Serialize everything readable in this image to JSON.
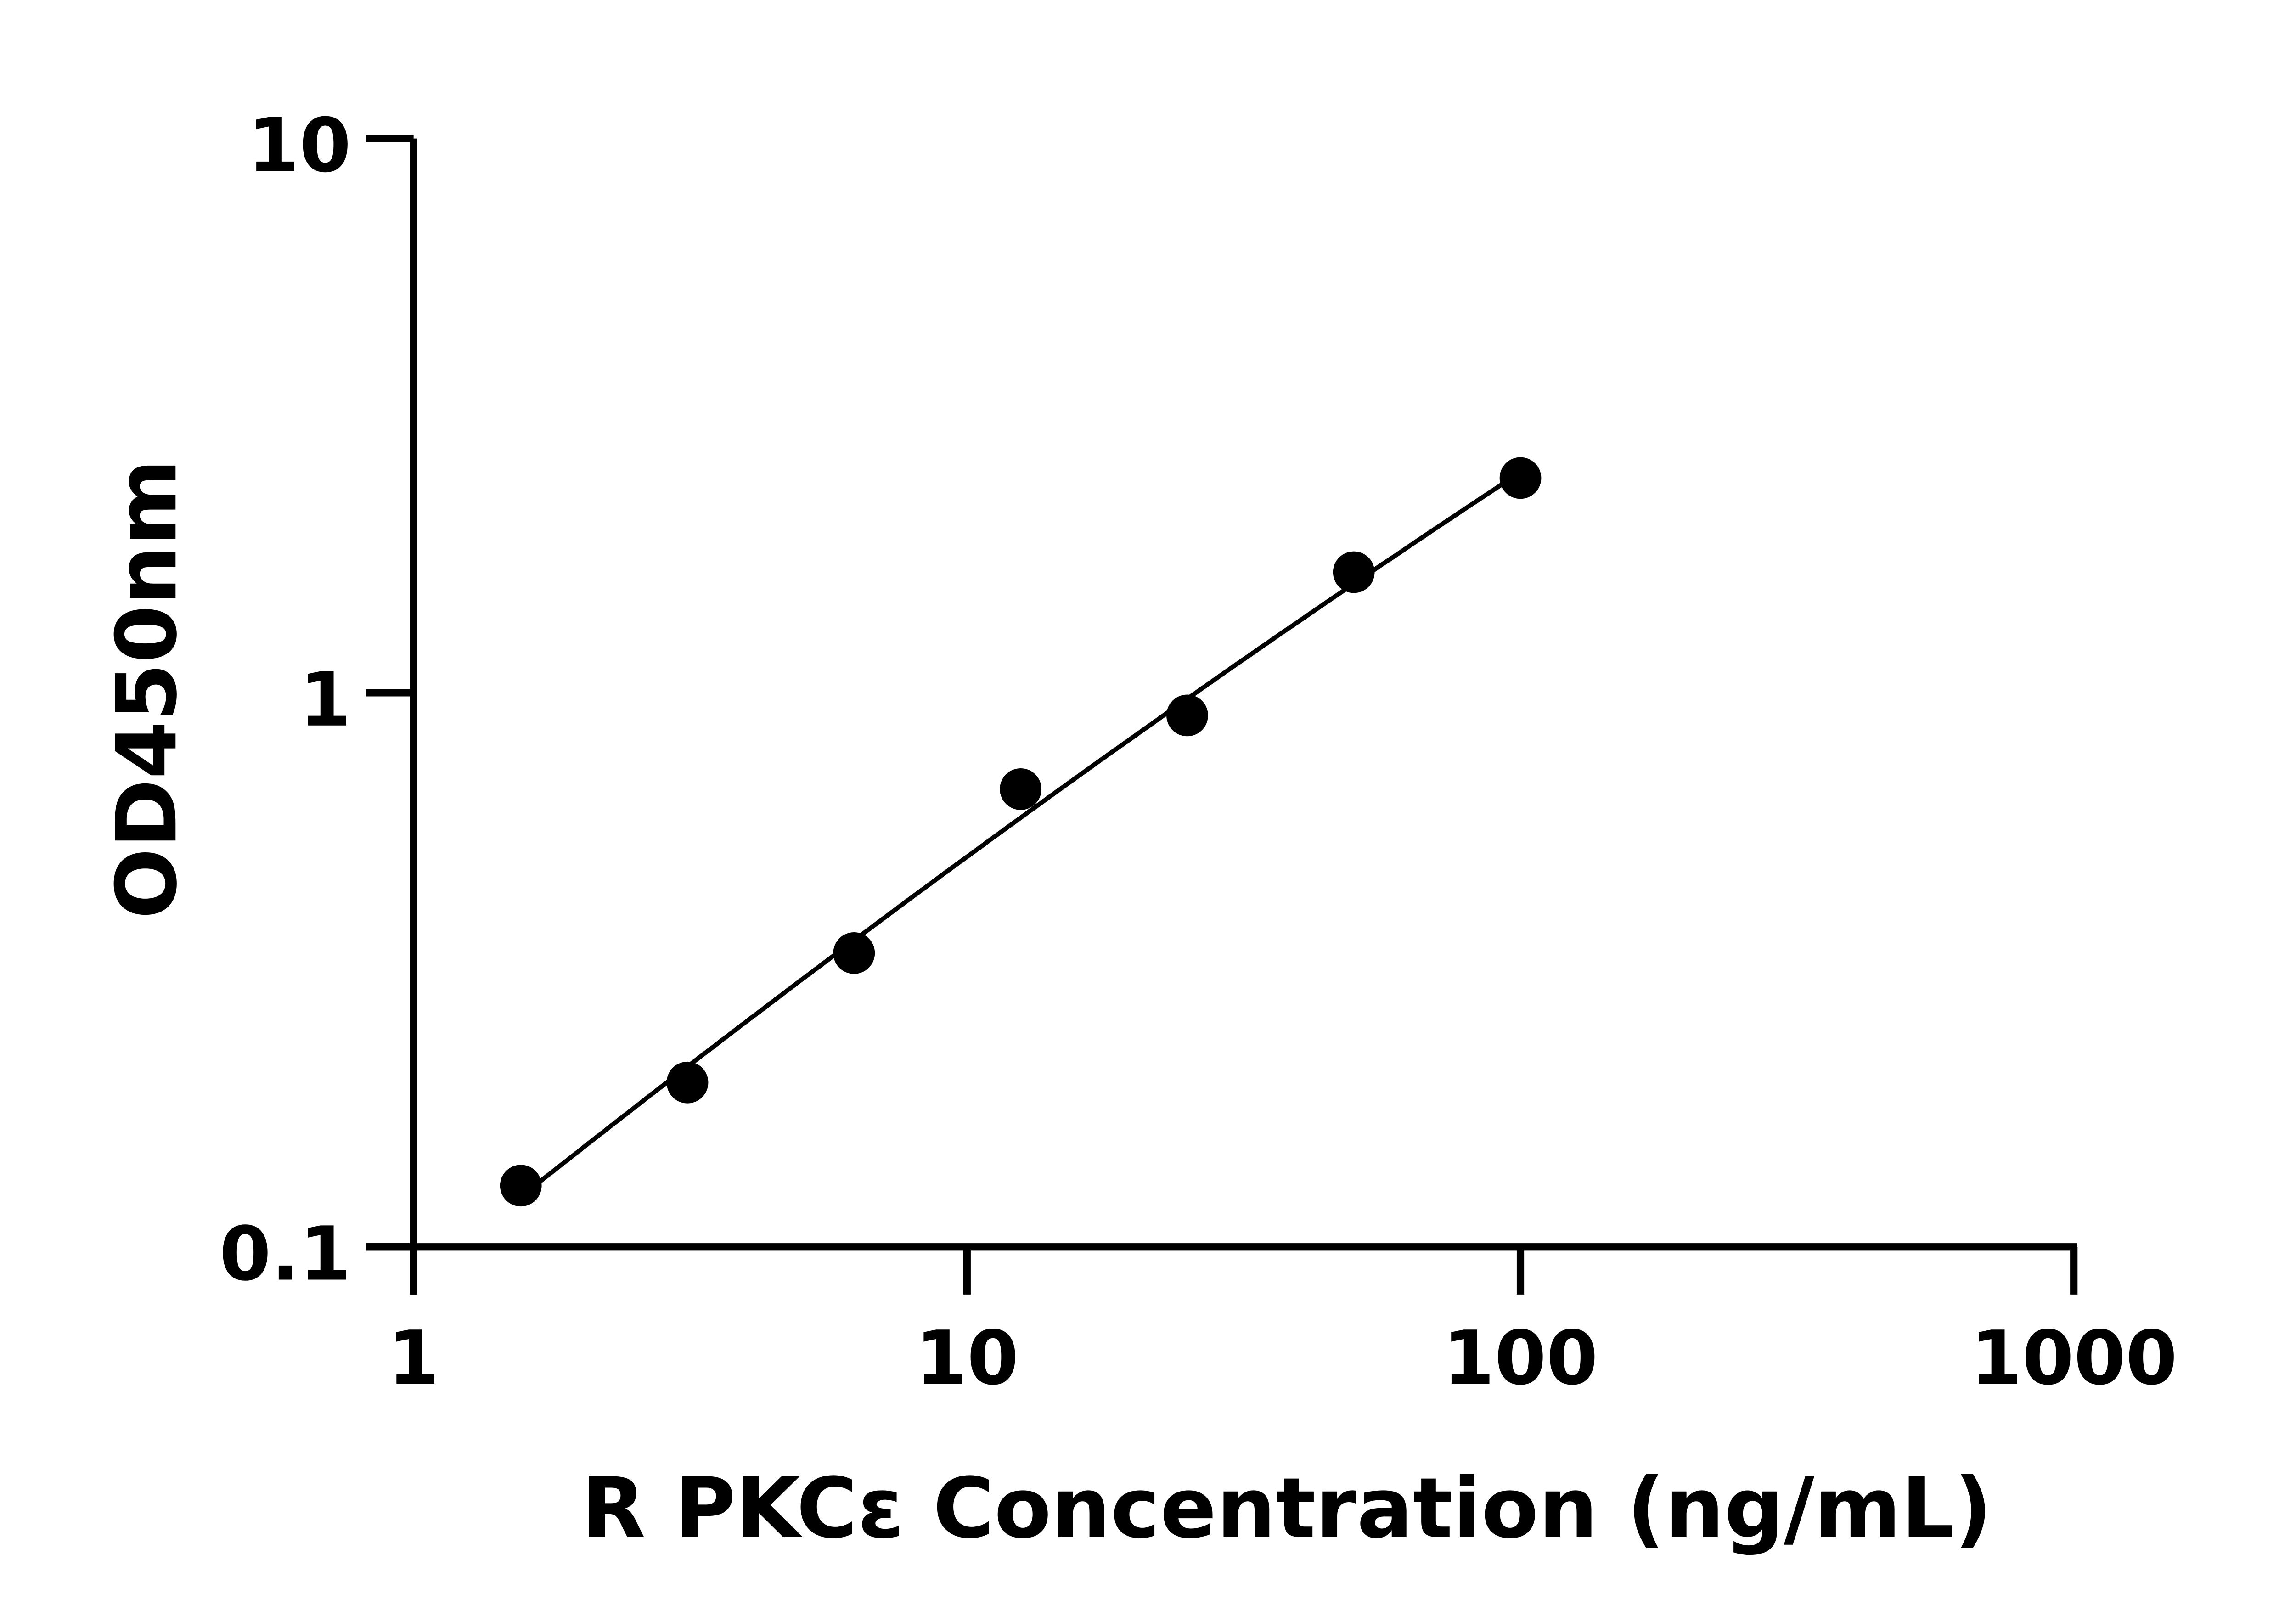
{
  "chart_data": {
    "type": "scatter",
    "title": "",
    "xlabel": "R PKCε Concentration (ng/mL)",
    "ylabel": "OD450nm",
    "x_scale": "log",
    "y_scale": "log",
    "xlim": [
      1,
      1000
    ],
    "ylim": [
      0.1,
      10
    ],
    "x_ticks": [
      "1",
      "10",
      "100",
      "1000"
    ],
    "y_ticks": [
      "0.1",
      "1",
      "10"
    ],
    "x_tick_values": [
      1,
      10,
      100,
      1000
    ],
    "y_tick_values": [
      0.1,
      1,
      10
    ],
    "grid": false,
    "legend": "none",
    "points": [
      {
        "x": 1.5625,
        "y": 0.129
      },
      {
        "x": 3.125,
        "y": 0.198
      },
      {
        "x": 6.25,
        "y": 0.339
      },
      {
        "x": 12.5,
        "y": 0.67
      },
      {
        "x": 25,
        "y": 0.91
      },
      {
        "x": 50,
        "y": 1.65
      },
      {
        "x": 100,
        "y": 2.44
      }
    ],
    "fit_curve": true,
    "color": "#000000"
  }
}
